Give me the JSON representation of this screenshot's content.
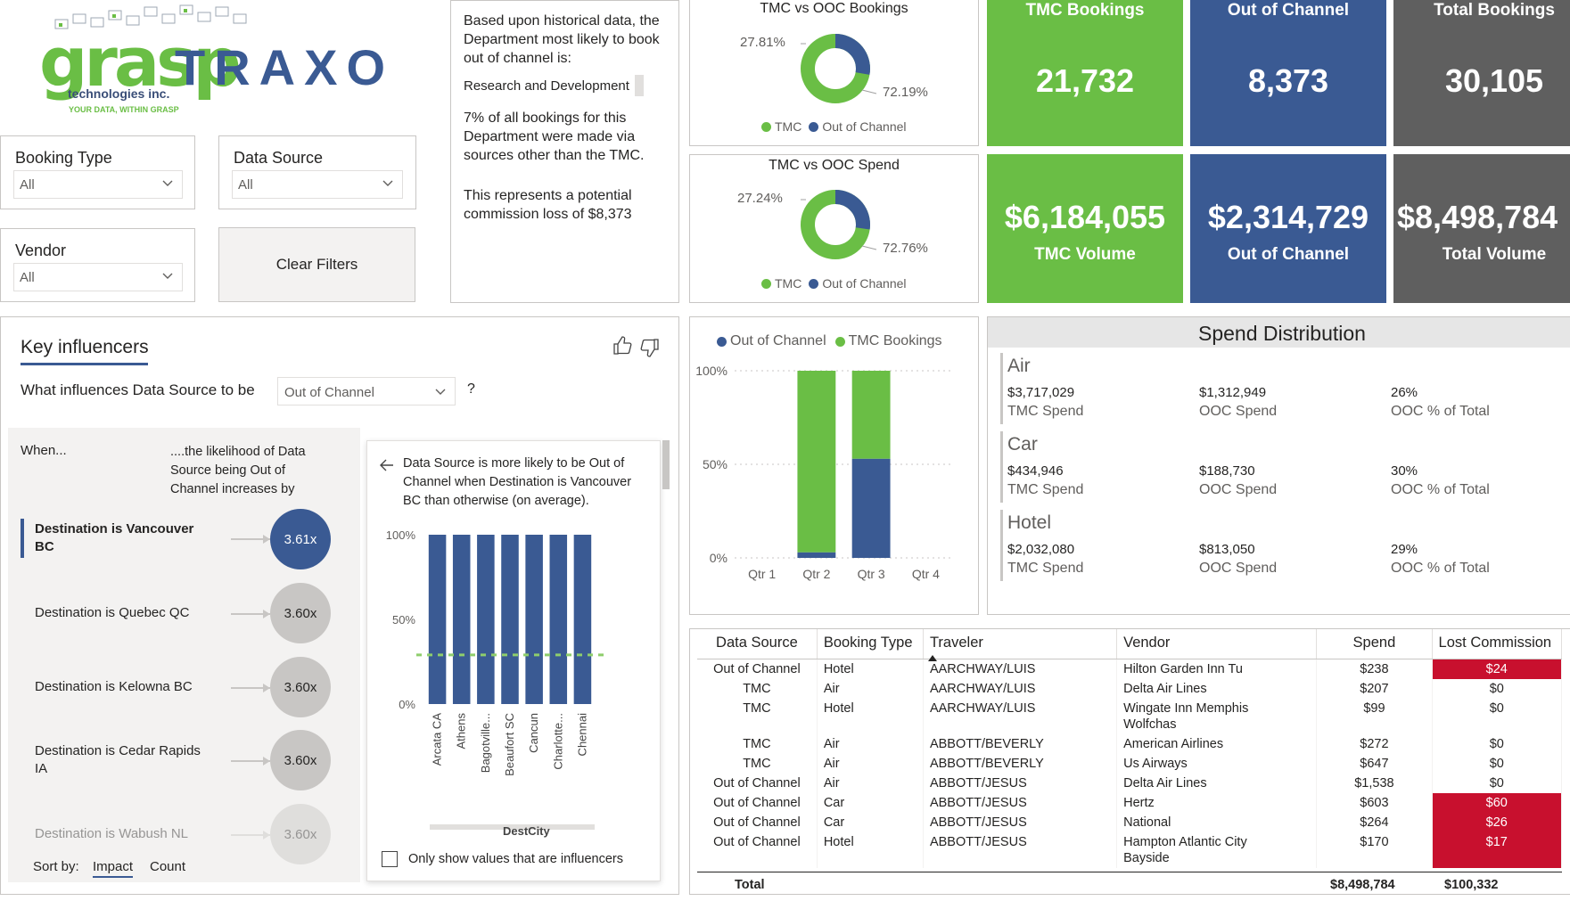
{
  "logo": {
    "name_part1": "grasp",
    "name_part2": "TRAXO",
    "subtitle": "technologies inc.",
    "tagline": "YOUR DATA, WITHIN GRASP"
  },
  "filters": {
    "booking_type": {
      "label": "Booking Type",
      "value": "All"
    },
    "data_source": {
      "label": "Data Source",
      "value": "All"
    },
    "vendor": {
      "label": "Vendor",
      "value": "All"
    },
    "clear_label": "Clear Filters"
  },
  "narrative": {
    "p1": "Based upon historical data, the Department most likely to book out of channel is:",
    "highlight": "Research and Development",
    "p2": "7% of all bookings for this Department were made via sources other than the TMC.",
    "p3": "This represents a potential commission loss of $8,373"
  },
  "donut_bookings": {
    "title": "TMC vs OOC Bookings",
    "ooc_pct": "27.81%",
    "tmc_pct": "72.19%",
    "ooc_value": 27.81,
    "tmc_value": 72.19,
    "legend_tmc": "TMC",
    "legend_ooc": "Out of Channel"
  },
  "donut_spend": {
    "title": "TMC vs OOC Spend",
    "ooc_pct": "27.24%",
    "tmc_pct": "72.76%",
    "ooc_value": 27.24,
    "tmc_value": 72.76,
    "legend_tmc": "TMC",
    "legend_ooc": "Out of Channel"
  },
  "kpis": {
    "tmc_bookings": {
      "label": "TMC Bookings",
      "value": "21,732"
    },
    "ooc_bookings": {
      "label": "Out of Channel",
      "value": "8,373"
    },
    "total_bookings": {
      "label": "Total Bookings",
      "value": "30,105"
    },
    "tmc_volume": {
      "label": "TMC Volume",
      "value": "$6,184,055"
    },
    "ooc_volume": {
      "label": "Out of Channel",
      "value": "$2,314,729"
    },
    "total_volume": {
      "label": "Total Volume",
      "value": "$8,498,784"
    }
  },
  "colors": {
    "green": "#6abe45",
    "blue": "#3a5a93",
    "gray": "#5f5f5f",
    "red": "#c8102e"
  },
  "key_influencers": {
    "tab_title": "Key influencers",
    "question": "What influences Data Source to be",
    "target_value": "Out of Channel",
    "help": "?",
    "col_when": "When...",
    "col_likelihood": "....the likelihood of Data Source being Out of Channel increases by",
    "items": [
      {
        "label": "Destination is Vancouver BC",
        "value": "3.61x"
      },
      {
        "label": "Destination is Quebec QC",
        "value": "3.60x"
      },
      {
        "label": "Destination is Kelowna BC",
        "value": "3.60x"
      },
      {
        "label": "Destination is Cedar Rapids IA",
        "value": "3.60x"
      },
      {
        "label": "Destination is Wabush NL",
        "value": "3.60x"
      }
    ],
    "sort_by": "Sort by:",
    "sort_impact": "Impact",
    "sort_count": "Count",
    "detail": {
      "text": "Data Source is more likely to be Out of Channel when Destination is Vancouver BC than otherwise (on average).",
      "xlabel": "DestCity",
      "checkbox_label": "Only show values that are influencers"
    }
  },
  "chart_data": [
    {
      "type": "bar",
      "title": "",
      "categories": [
        "Arcata CA",
        "Athens",
        "Bagotville...",
        "Beaufort SC",
        "Cancun",
        "Charlotte...",
        "Chennai"
      ],
      "values": [
        100,
        100,
        100,
        100,
        100,
        100,
        100
      ],
      "average_line": 29,
      "ylim": [
        0,
        100
      ],
      "yticks": [
        "0%",
        "50%",
        "100%"
      ],
      "xlabel": "DestCity",
      "ylabel": ""
    },
    {
      "type": "bar",
      "stacked": true,
      "title": "",
      "categories": [
        "Qtr 1",
        "Qtr 2",
        "Qtr 3",
        "Qtr 4"
      ],
      "series": [
        {
          "name": "Out of Channel",
          "values": [
            0,
            3,
            53,
            0
          ]
        },
        {
          "name": "TMC Bookings",
          "values": [
            0,
            97,
            47,
            0
          ]
        }
      ],
      "ylim": [
        0,
        100
      ],
      "yticks": [
        "0%",
        "50%",
        "100%"
      ],
      "legend": "top-left"
    }
  ],
  "spend_distribution": {
    "title": "Spend Distribution",
    "tmc_label": "TMC Spend",
    "ooc_label": "OOC Spend",
    "pct_label": "OOC % of Total",
    "sections": [
      {
        "name": "Air",
        "tmc": "$3,717,029",
        "ooc": "$1,312,949",
        "pct": "26%"
      },
      {
        "name": "Car",
        "tmc": "$434,946",
        "ooc": "$188,730",
        "pct": "30%"
      },
      {
        "name": "Hotel",
        "tmc": "$2,032,080",
        "ooc": "$813,050",
        "pct": "29%"
      }
    ]
  },
  "table": {
    "headers": [
      "Data Source",
      "Booking Type",
      "Traveler",
      "Vendor",
      "Spend",
      "Lost Commission"
    ],
    "rows": [
      [
        "Out of Channel",
        "Hotel",
        "AARCHWAY/LUIS",
        "Hilton Garden Inn Tu",
        "$238",
        "$24"
      ],
      [
        "TMC",
        "Air",
        "AARCHWAY/LUIS",
        "Delta Air Lines",
        "$207",
        "$0"
      ],
      [
        "TMC",
        "Hotel",
        "AARCHWAY/LUIS",
        "Wingate Inn Memphis",
        "$99",
        "$0"
      ],
      [
        "TMC",
        "Air",
        "ABBOTT/BEVERLY",
        "American Airlines",
        "$272",
        "$0"
      ],
      [
        "TMC",
        "Air",
        "ABBOTT/BEVERLY",
        "Us Airways",
        "$647",
        "$0"
      ],
      [
        "Out of Channel",
        "Air",
        "ABBOTT/JESUS",
        "Delta Air Lines",
        "$1,538",
        "$0"
      ],
      [
        "Out of Channel",
        "Car",
        "ABBOTT/JESUS",
        "Hertz",
        "$603",
        "$60"
      ],
      [
        "Out of Channel",
        "Car",
        "ABBOTT/JESUS",
        "National",
        "$264",
        "$26"
      ],
      [
        "Out of Channel",
        "Hotel",
        "ABBOTT/JESUS",
        "Hampton Atlantic City",
        "$170",
        "$17"
      ]
    ],
    "vendor_line2": {
      "2": "Wolfchas",
      "8": "Bayside"
    },
    "highlight_rows": [
      0,
      6,
      7,
      8
    ],
    "total_label": "Total",
    "total_spend": "$8,498,784",
    "total_commission": "$100,332"
  }
}
